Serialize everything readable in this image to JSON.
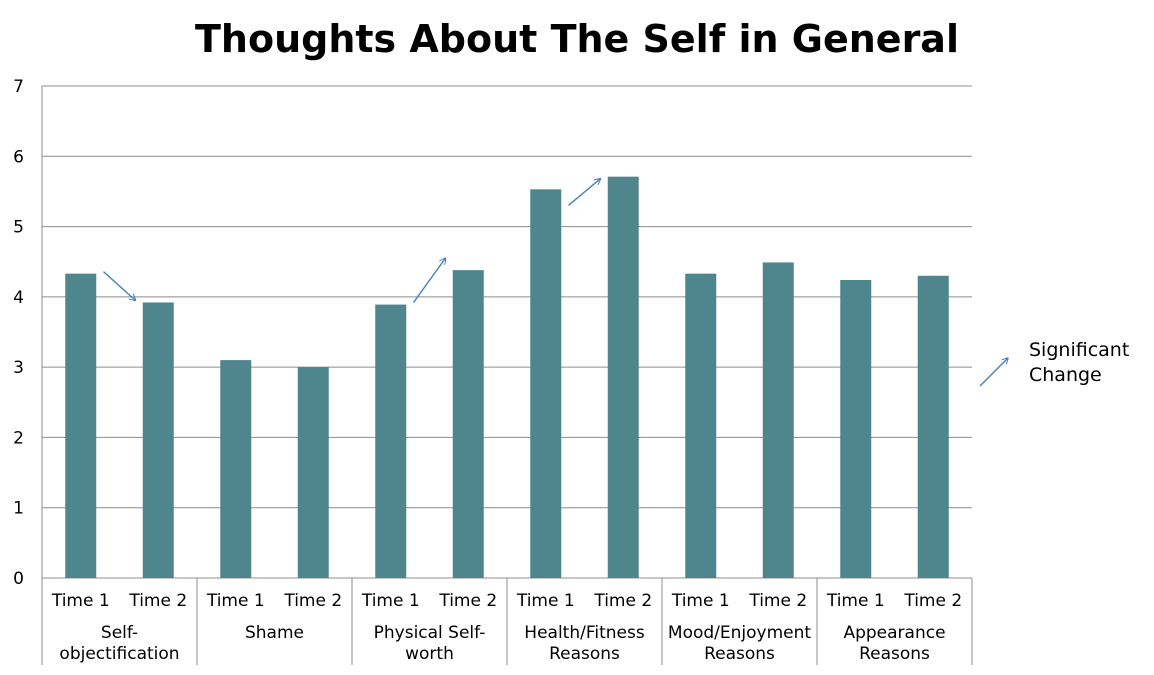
{
  "chart_data": {
    "type": "bar",
    "title": "Thoughts About The Self in General",
    "xlabel": "",
    "ylabel": "",
    "ylim": [
      0,
      7
    ],
    "yticks": [
      0,
      1,
      2,
      3,
      4,
      5,
      6,
      7
    ],
    "grid": true,
    "bar_color": "#4f868e",
    "arrow_color": "#4a7fbf",
    "groups": [
      {
        "label": "Self-objectification",
        "label_lines": [
          "Self-",
          "objectification"
        ],
        "bars": [
          {
            "label": "Time 1",
            "value": 4.33
          },
          {
            "label": "Time 2",
            "value": 3.92
          }
        ],
        "significant": true,
        "direction": "down"
      },
      {
        "label": "Shame",
        "label_lines": [
          "Shame"
        ],
        "bars": [
          {
            "label": "Time 1",
            "value": 3.1
          },
          {
            "label": "Time 2",
            "value": 3.0
          }
        ],
        "significant": false,
        "direction": ""
      },
      {
        "label": "Physical Self-worth",
        "label_lines": [
          "Physical Self-",
          "worth"
        ],
        "bars": [
          {
            "label": "Time 1",
            "value": 3.89
          },
          {
            "label": "Time 2",
            "value": 4.38
          }
        ],
        "significant": true,
        "direction": "up"
      },
      {
        "label": "Health/Fitness Reasons",
        "label_lines": [
          "Health/Fitness",
          "Reasons"
        ],
        "bars": [
          {
            "label": "Time 1",
            "value": 5.53
          },
          {
            "label": "Time 2",
            "value": 5.71
          }
        ],
        "significant": true,
        "direction": "up"
      },
      {
        "label": "Mood/Enjoyment Reasons",
        "label_lines": [
          "Mood/Enjoyment",
          "Reasons"
        ],
        "bars": [
          {
            "label": "Time 1",
            "value": 4.33
          },
          {
            "label": "Time 2",
            "value": 4.49
          }
        ],
        "significant": false,
        "direction": ""
      },
      {
        "label": "Appearance Reasons",
        "label_lines": [
          "Appearance",
          "Reasons"
        ],
        "bars": [
          {
            "label": "Time 1",
            "value": 4.24
          },
          {
            "label": "Time 2",
            "value": 4.3
          }
        ],
        "significant": false,
        "direction": ""
      }
    ],
    "legend": {
      "label_lines": [
        "Significant",
        "Change"
      ],
      "placement": "right"
    }
  }
}
